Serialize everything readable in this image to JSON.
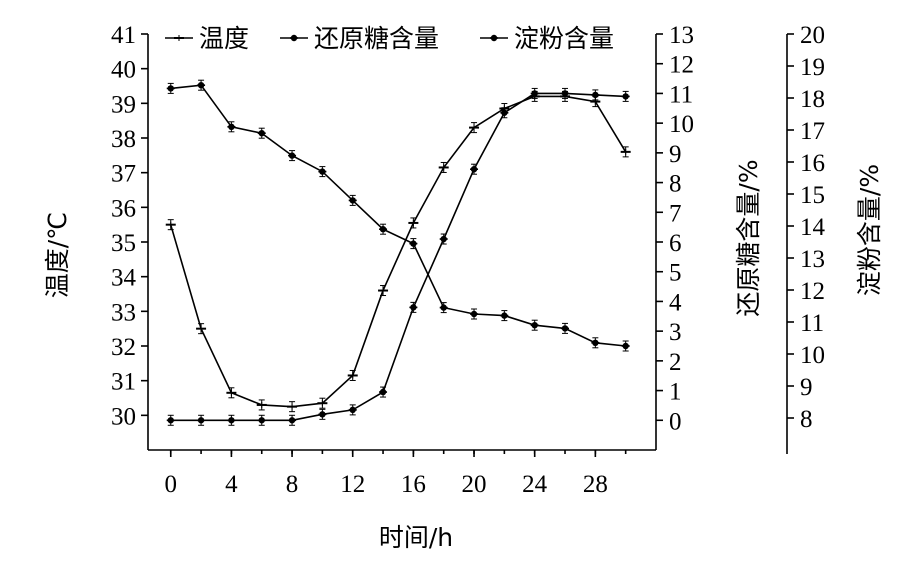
{
  "chart_data": {
    "type": "line",
    "x": [
      0,
      2,
      4,
      6,
      8,
      10,
      12,
      14,
      16,
      18,
      20,
      22,
      24,
      26,
      28,
      30
    ],
    "xlabel": "时间/h",
    "x_ticks": [
      "0",
      "4",
      "8",
      "12",
      "16",
      "20",
      "24",
      "28"
    ],
    "xlim": [
      -1.5,
      32
    ],
    "axes": {
      "left": {
        "label": "温度/℃",
        "ylim": [
          29,
          41
        ],
        "ticks": [
          "30",
          "31",
          "32",
          "33",
          "34",
          "35",
          "36",
          "37",
          "38",
          "39",
          "40",
          "41"
        ]
      },
      "right1": {
        "label": "还原糖含量/%",
        "ylim": [
          -1,
          13
        ],
        "ticks": [
          "0",
          "1",
          "2",
          "3",
          "4",
          "5",
          "6",
          "7",
          "8",
          "9",
          "10",
          "11",
          "12",
          "13"
        ]
      },
      "right2": {
        "label": "淀粉含量/%",
        "ylim": [
          7,
          20
        ],
        "ticks": [
          "8",
          "9",
          "10",
          "11",
          "12",
          "13",
          "14",
          "15",
          "16",
          "17",
          "18",
          "19",
          "20"
        ]
      }
    },
    "series": [
      {
        "name": "温度",
        "axis": "left",
        "marker": "dash",
        "values": [
          35.5,
          32.5,
          30.65,
          30.3,
          30.25,
          30.35,
          31.15,
          33.6,
          35.55,
          37.15,
          38.3,
          38.85,
          39.2,
          39.2,
          39.05,
          37.6
        ]
      },
      {
        "name": "还原糖含量",
        "axis": "right1",
        "marker": "dot",
        "values": [
          0.0,
          0.0,
          0.0,
          0.0,
          0.0,
          0.2,
          0.35,
          0.95,
          3.8,
          6.1,
          8.45,
          10.35,
          11.0,
          11.0,
          10.95,
          10.9
        ]
      },
      {
        "name": "淀粉含量",
        "axis": "right2",
        "marker": "dot",
        "values": [
          18.3,
          18.4,
          17.1,
          16.9,
          16.2,
          15.7,
          14.8,
          13.9,
          13.45,
          11.45,
          11.25,
          11.2,
          10.9,
          10.8,
          10.35,
          10.25
        ]
      }
    ],
    "legend_position": "top"
  }
}
